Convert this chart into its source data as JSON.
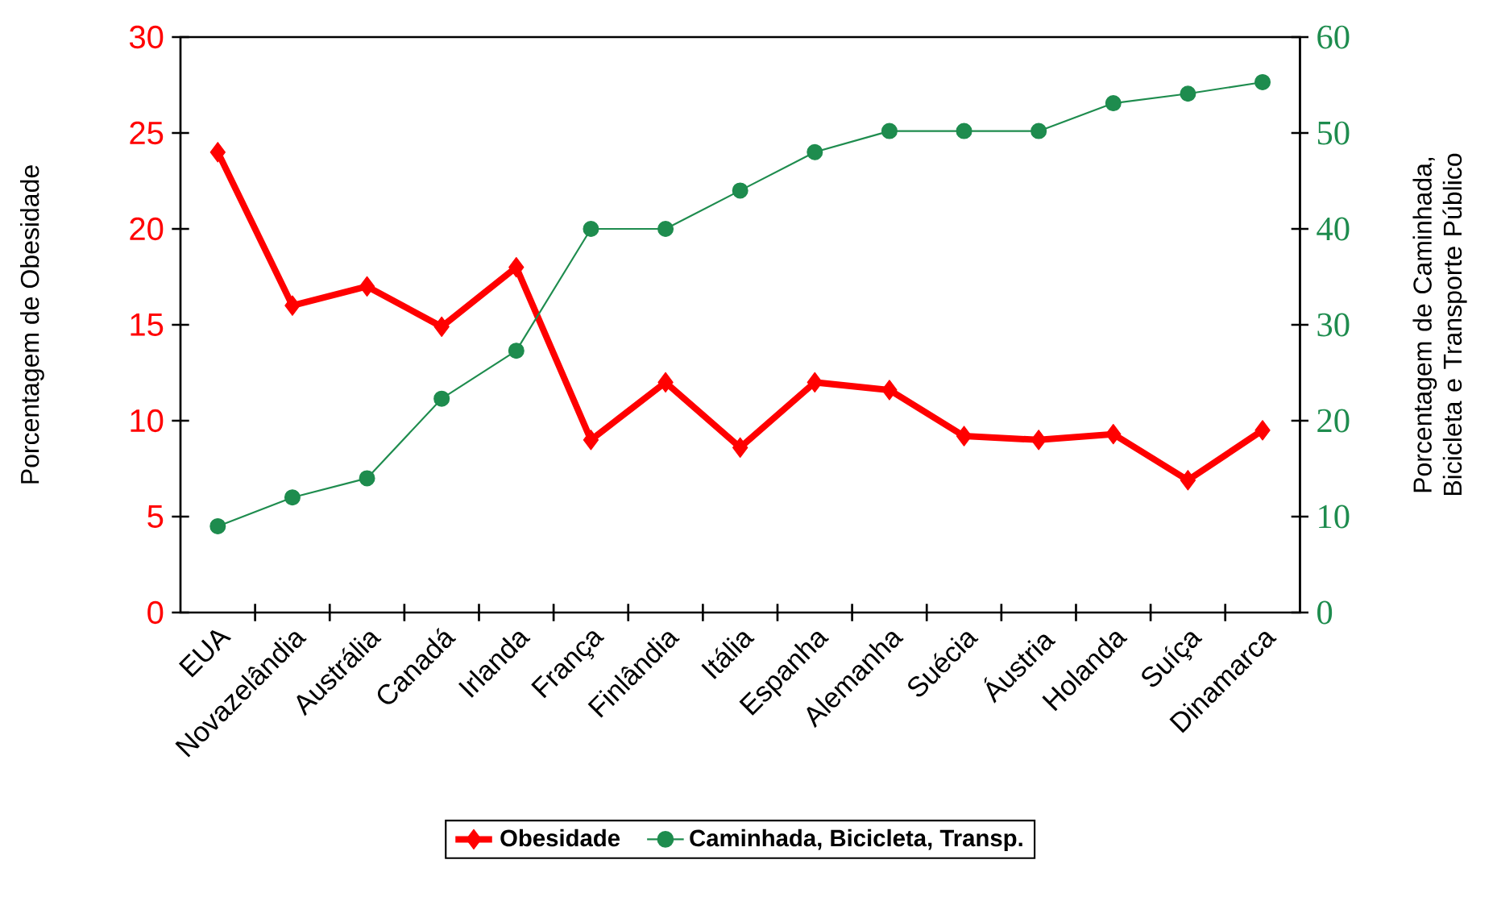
{
  "chart_data": {
    "type": "line",
    "categories": [
      "EUA",
      "Novazelândia",
      "Austrália",
      "Canadá",
      "Irlanda",
      "França",
      "Finlândia",
      "Itália",
      "Espanha",
      "Alemanha",
      "Suécia",
      "Áustria",
      "Holanda",
      "Suíça",
      "Dinamarca"
    ],
    "ylabel": "Porcentagem de Obesidade",
    "y2label": "Porcentagem de Caminhada, Bicicleta e Transporte Público",
    "ylim": [
      0,
      30
    ],
    "yticks": [
      0,
      5,
      10,
      15,
      20,
      25,
      30
    ],
    "y2lim": [
      0,
      60
    ],
    "y2ticks": [
      0,
      10,
      20,
      30,
      40,
      50,
      60
    ],
    "legend": "bottom",
    "series": [
      {
        "name": "Obesidade",
        "color": "#ff0000",
        "marker": "diamond",
        "values": [
          24,
          16,
          17,
          14.9,
          18,
          9,
          12,
          8.6,
          12,
          11.6,
          9.2,
          9,
          9.3,
          6.9,
          9.5
        ]
      },
      {
        "name": "Caminhada, Bicicleta, Transp.",
        "color": "#1e8c4e",
        "marker": "circle",
        "axis": "y2",
        "values": [
          9,
          12,
          14,
          22.3,
          27.3,
          40,
          40,
          44,
          48,
          50.2,
          50.2,
          50.2,
          53.1,
          54.1,
          55.3
        ]
      }
    ]
  }
}
